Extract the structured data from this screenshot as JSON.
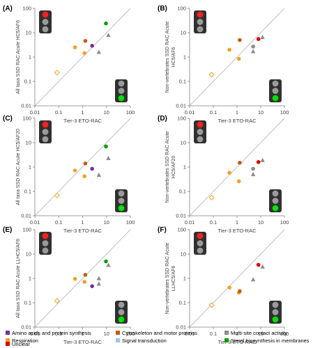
{
  "chart_data": [
    {
      "type": "scatter",
      "panel_label": "(A)",
      "xlabel": "Tier-3 ETO-RAC",
      "ylabel": "All taxa SSD RAC Acute HC5/AF6",
      "xscale": "log",
      "yscale": "log",
      "xlim": [
        0.01,
        100
      ],
      "ylim": [
        0.01,
        100
      ],
      "x_ticks": [
        "0.01",
        "0.1",
        "1",
        "10",
        "100"
      ],
      "y_ticks": [
        "0.01",
        "0.1",
        "1",
        "10",
        "100"
      ],
      "reference_line": "1:1",
      "points": [
        {
          "x": 0.085,
          "y": 0.23,
          "group": "Respiration",
          "shape": "diamond-open"
        },
        {
          "x": 0.48,
          "y": 2.5,
          "group": "Respiration",
          "shape": "circle"
        },
        {
          "x": 1.2,
          "y": 1.45,
          "group": "Respiration",
          "shape": "circle"
        },
        {
          "x": 1.3,
          "y": 4.6,
          "group": "Cytoskeleton and motor proteins",
          "shape": "circle"
        },
        {
          "x": 2.5,
          "y": 2.9,
          "group": "Amino acids and protein synthesis",
          "shape": "circle"
        },
        {
          "x": 4.8,
          "y": 1.6,
          "group": "Multi-site contact activity",
          "shape": "triangle"
        },
        {
          "x": 12,
          "y": 8.0,
          "group": "Multi-site contact activity",
          "shape": "triangle"
        },
        {
          "x": 9.5,
          "y": 24,
          "group": "Sterol biosynthesis in membranes",
          "shape": "circle"
        }
      ]
    },
    {
      "type": "scatter",
      "panel_label": "(B)",
      "xlabel": "Tier-3 ETO-RAC",
      "ylabel": "Non-vertebrates SSD RAC Acute HC5/AF6",
      "xscale": "log",
      "yscale": "log",
      "xlim": [
        0.01,
        100
      ],
      "ylim": [
        0.01,
        100
      ],
      "x_ticks": [
        "0.01",
        "0.1",
        "1",
        "10",
        "100"
      ],
      "y_ticks": [
        "0.01",
        "0.1",
        "1",
        "10",
        "100"
      ],
      "reference_line": "1:1",
      "points": [
        {
          "x": 0.085,
          "y": 0.19,
          "group": "Respiration",
          "shape": "diamond-open"
        },
        {
          "x": 0.48,
          "y": 2.0,
          "group": "Respiration",
          "shape": "circle"
        },
        {
          "x": 1.2,
          "y": 0.85,
          "group": "Respiration",
          "shape": "circle"
        },
        {
          "x": 1.3,
          "y": 5.0,
          "group": "Cytoskeleton and motor proteins",
          "shape": "circle"
        },
        {
          "x": 4.8,
          "y": 2.7,
          "group": "Multi-site contact activity",
          "shape": "circle"
        },
        {
          "x": 4.8,
          "y": 1.7,
          "group": "Multi-site contact activity",
          "shape": "triangle"
        },
        {
          "x": 12,
          "y": 6.5,
          "group": "Multi-site contact activity",
          "shape": "triangle"
        },
        {
          "x": 8.0,
          "y": 5.5,
          "group": "Unclear",
          "shape": "circle"
        }
      ]
    },
    {
      "type": "scatter",
      "panel_label": "(C)",
      "xlabel": "Tier-3 ETO-RAC",
      "ylabel": "All taxa SSD RAC Acute HC5/AF20",
      "xscale": "log",
      "yscale": "log",
      "xlim": [
        0.01,
        100
      ],
      "ylim": [
        0.01,
        100
      ],
      "x_ticks": [
        "0.01",
        "0.1",
        "1",
        "10",
        "100"
      ],
      "y_ticks": [
        "0.01",
        "0.1",
        "1",
        "10",
        "100"
      ],
      "reference_line": "1:1",
      "points": [
        {
          "x": 0.085,
          "y": 0.068,
          "group": "Respiration",
          "shape": "diamond-open"
        },
        {
          "x": 0.48,
          "y": 0.72,
          "group": "Respiration",
          "shape": "circle"
        },
        {
          "x": 1.2,
          "y": 0.42,
          "group": "Respiration",
          "shape": "circle"
        },
        {
          "x": 1.3,
          "y": 1.4,
          "group": "Cytoskeleton and motor proteins",
          "shape": "circle"
        },
        {
          "x": 2.5,
          "y": 0.85,
          "group": "Amino acids and protein synthesis",
          "shape": "circle"
        },
        {
          "x": 4.8,
          "y": 0.47,
          "group": "Multi-site contact activity",
          "shape": "triangle"
        },
        {
          "x": 12,
          "y": 2.3,
          "group": "Multi-site contact activity",
          "shape": "triangle"
        },
        {
          "x": 9.5,
          "y": 7.0,
          "group": "Sterol biosynthesis in membranes",
          "shape": "circle"
        }
      ]
    },
    {
      "type": "scatter",
      "panel_label": "(D)",
      "xlabel": "Tier-3 ETO-RAC",
      "ylabel": "Non-vertebrates SSD RAC Acute HC5/AF20",
      "xscale": "log",
      "yscale": "log",
      "xlim": [
        0.01,
        100
      ],
      "ylim": [
        0.01,
        100
      ],
      "x_ticks": [
        "0.01",
        "0.1",
        "1",
        "10",
        "100"
      ],
      "y_ticks": [
        "0.01",
        "0.1",
        "1",
        "10",
        "100"
      ],
      "reference_line": "1:1",
      "points": [
        {
          "x": 0.085,
          "y": 0.056,
          "group": "Respiration",
          "shape": "diamond-open"
        },
        {
          "x": 0.48,
          "y": 0.58,
          "group": "Respiration",
          "shape": "circle"
        },
        {
          "x": 1.2,
          "y": 0.26,
          "group": "Respiration",
          "shape": "circle"
        },
        {
          "x": 1.3,
          "y": 1.5,
          "group": "Cytoskeleton and motor proteins",
          "shape": "circle"
        },
        {
          "x": 4.8,
          "y": 0.85,
          "group": "Multi-site contact activity",
          "shape": "circle"
        },
        {
          "x": 4.8,
          "y": 0.5,
          "group": "Multi-site contact activity",
          "shape": "triangle"
        },
        {
          "x": 12,
          "y": 1.9,
          "group": "Multi-site contact activity",
          "shape": "triangle"
        },
        {
          "x": 8.0,
          "y": 1.6,
          "group": "Unclear",
          "shape": "circle"
        }
      ]
    },
    {
      "type": "scatter",
      "panel_label": "(E)",
      "xlabel": "Tier-3 ETO-RAC",
      "ylabel": "All taxa SSD RAC Acute LLHC5/AF6",
      "xscale": "log",
      "yscale": "log",
      "xlim": [
        0.01,
        100
      ],
      "ylim": [
        0.01,
        100
      ],
      "x_ticks": [
        "0.01",
        "0.1",
        "1",
        "10",
        "100"
      ],
      "y_ticks": [
        "0.01",
        "0.1",
        "1",
        "10",
        "100"
      ],
      "reference_line": "1:1",
      "points": [
        {
          "x": 0.085,
          "y": 0.12,
          "group": "Respiration",
          "shape": "diamond-open"
        },
        {
          "x": 0.48,
          "y": 0.95,
          "group": "Respiration",
          "shape": "circle"
        },
        {
          "x": 1.2,
          "y": 0.72,
          "group": "Respiration",
          "shape": "circle"
        },
        {
          "x": 1.3,
          "y": 1.4,
          "group": "Cytoskeleton and motor proteins",
          "shape": "circle"
        },
        {
          "x": 2.5,
          "y": 0.48,
          "group": "Amino acids and protein synthesis",
          "shape": "circle"
        },
        {
          "x": 4.8,
          "y": 0.6,
          "group": "Multi-site contact activity",
          "shape": "triangle"
        },
        {
          "x": 4.8,
          "y": 1.0,
          "group": "Multi-site contact activity",
          "shape": "triangle"
        },
        {
          "x": 12,
          "y": 3.5,
          "group": "Multi-site contact activity",
          "shape": "triangle"
        },
        {
          "x": 9.5,
          "y": 5.0,
          "group": "Sterol biosynthesis in membranes",
          "shape": "circle"
        }
      ]
    },
    {
      "type": "scatter",
      "panel_label": "(F)",
      "xlabel": "Tier-3 ETO-RAC",
      "ylabel": "Non-vertebrates SSD RAC Acute LLHC5/AF6",
      "xscale": "log",
      "yscale": "log",
      "xlim": [
        0.01,
        100
      ],
      "ylim": [
        0.01,
        100
      ],
      "x_ticks": [
        "0.01",
        "0.1",
        "1",
        "10",
        "100"
      ],
      "y_ticks": [
        "0.01",
        "0.1",
        "1",
        "10",
        "100"
      ],
      "reference_line": "1:1",
      "points": [
        {
          "x": 0.085,
          "y": 0.08,
          "group": "Respiration",
          "shape": "diamond-open"
        },
        {
          "x": 0.48,
          "y": 0.42,
          "group": "Respiration",
          "shape": "circle"
        },
        {
          "x": 1.2,
          "y": 0.26,
          "group": "Respiration",
          "shape": "circle"
        },
        {
          "x": 1.3,
          "y": 0.3,
          "group": "Cytoskeleton and motor proteins",
          "shape": "circle"
        },
        {
          "x": 4.8,
          "y": 0.9,
          "group": "Multi-site contact activity",
          "shape": "triangle"
        },
        {
          "x": 12,
          "y": 3.0,
          "group": "Multi-site contact activity",
          "shape": "triangle"
        },
        {
          "x": 8.0,
          "y": 3.6,
          "group": "Unclear",
          "shape": "circle"
        }
      ]
    }
  ],
  "legend": {
    "placement": "bottom",
    "entries": [
      {
        "label": "Amino acids and protein synthesis",
        "color": "#7030a0"
      },
      {
        "label": "Cytoskeleton and motor proteins",
        "color": "#c55a11"
      },
      {
        "label": "Multi-site contact activity",
        "color": "#8c8c8c"
      },
      {
        "label": "Respiration",
        "color": "#f4a020"
      },
      {
        "label": "Signal transduction",
        "color": "#9dc3e6"
      },
      {
        "label": "Sterol biosynthesis in membranes",
        "color": "#00a000"
      },
      {
        "label": "Unclear",
        "color": "#e00000"
      }
    ]
  },
  "colors": {
    "traffic_light_red": "#ff2020",
    "traffic_light_green": "#00e000",
    "traffic_light_off": "#9a9a9a",
    "traffic_light_body": "#303030",
    "reference_line": "#a6a6a6",
    "axis": "#7f7f7f"
  },
  "icons": [
    "traffic-light-red-icon",
    "traffic-light-green-icon"
  ]
}
